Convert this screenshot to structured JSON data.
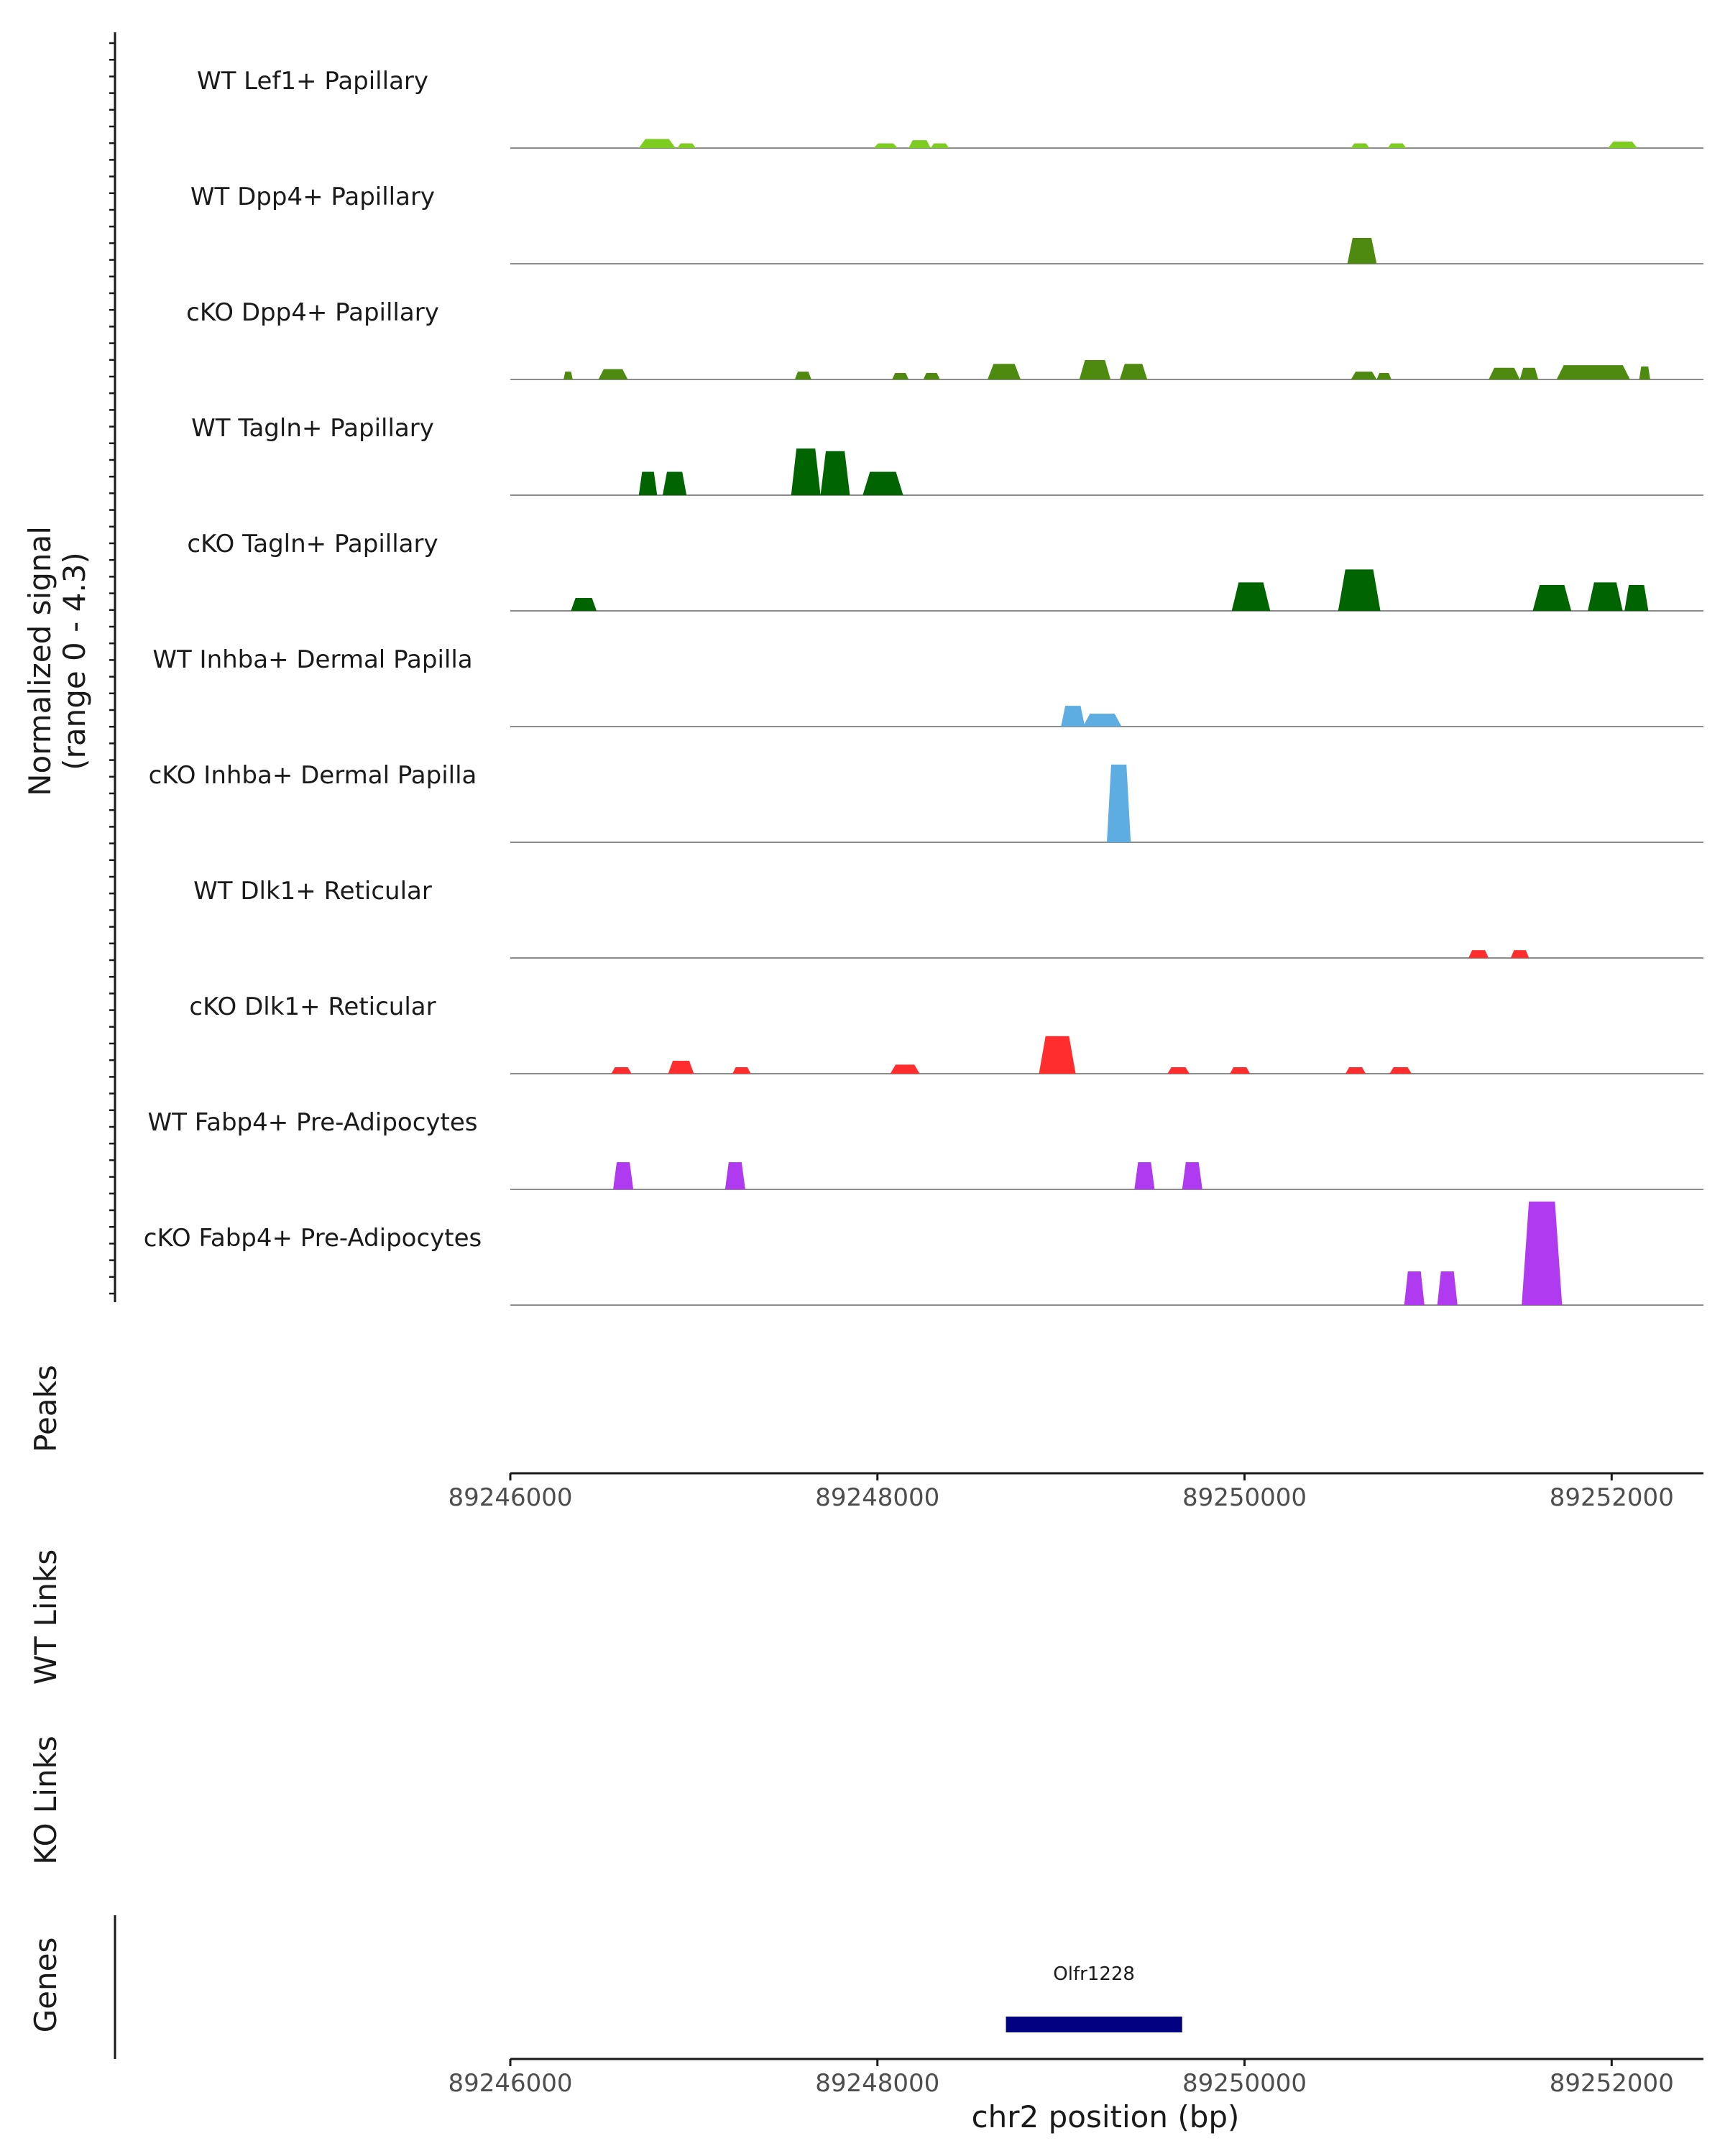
{
  "chart_data": {
    "type": "area",
    "title": "",
    "chromosome": "chr2",
    "xlim": [
      89246000,
      89252500
    ],
    "ylim": [
      0,
      4.3
    ],
    "ylabel": "Normalized signal",
    "ylabel_sub": "(range 0 - 4.3)",
    "xlabel": "chr2 position (bp)",
    "x_ticks": [
      "89246000",
      "89248000",
      "89250000",
      "89252000"
    ],
    "x_tick_values": [
      89246000,
      89248000,
      89250000,
      89252000
    ],
    "panel_labels": {
      "peaks": "Peaks",
      "wt_links": "WT Links",
      "ko_links": "KO Links",
      "genes": "Genes"
    },
    "series": [
      {
        "name": "WT Lef1+ Papillary",
        "color": "#7CCD1F",
        "peaks": [
          [
            89246700,
            89246900,
            0.35
          ],
          [
            89246910,
            89247010,
            0.18
          ],
          [
            89247980,
            89248110,
            0.18
          ],
          [
            89248170,
            89248290,
            0.3
          ],
          [
            89248290,
            89248390,
            0.18
          ],
          [
            89250580,
            89250680,
            0.18
          ],
          [
            89250780,
            89250880,
            0.18
          ],
          [
            89251980,
            89252140,
            0.25
          ]
        ]
      },
      {
        "name": "WT Dpp4+ Papillary",
        "color": "#4E8A10",
        "peaks": [
          [
            89250560,
            89250720,
            1.0
          ]
        ]
      },
      {
        "name": "cKO Dpp4+ Papillary",
        "color": "#4E8A10",
        "peaks": [
          [
            89246290,
            89246340,
            0.3
          ],
          [
            89246480,
            89246640,
            0.4
          ],
          [
            89247550,
            89247640,
            0.3
          ],
          [
            89248080,
            89248170,
            0.25
          ],
          [
            89248250,
            89248340,
            0.25
          ],
          [
            89248600,
            89248780,
            0.6
          ],
          [
            89249100,
            89249270,
            0.75
          ],
          [
            89249320,
            89249470,
            0.6
          ],
          [
            89250580,
            89250720,
            0.3
          ],
          [
            89250720,
            89250800,
            0.25
          ],
          [
            89251330,
            89251500,
            0.45
          ],
          [
            89251500,
            89251600,
            0.45
          ],
          [
            89251700,
            89252100,
            0.55
          ],
          [
            89252150,
            89252210,
            0.5
          ]
        ]
      },
      {
        "name": "WT Tagln+ Papillary",
        "color": "#006400",
        "peaks": [
          [
            89246700,
            89246800,
            0.9
          ],
          [
            89246830,
            89246960,
            0.9
          ],
          [
            89247530,
            89247690,
            1.8
          ],
          [
            89247690,
            89247850,
            1.7
          ],
          [
            89247920,
            89248140,
            0.9
          ]
        ]
      },
      {
        "name": "cKO Tagln+ Papillary",
        "color": "#006400",
        "peaks": [
          [
            89246330,
            89246470,
            0.5
          ],
          [
            89249930,
            89250140,
            1.1
          ],
          [
            89250510,
            89250740,
            1.6
          ],
          [
            89251570,
            89251780,
            1.0
          ],
          [
            89251870,
            89252060,
            1.1
          ],
          [
            89252070,
            89252200,
            1.0
          ]
        ]
      },
      {
        "name": "WT Inhba+ Dermal Papilla",
        "color": "#5DADE2",
        "peaks": [
          [
            89249000,
            89249130,
            0.8
          ],
          [
            89249120,
            89249330,
            0.5
          ]
        ]
      },
      {
        "name": "cKO Inhba+ Dermal Papilla",
        "color": "#5DADE2",
        "peaks": [
          [
            89249250,
            89249380,
            3.0
          ]
        ]
      },
      {
        "name": "WT Dlk1+ Reticular",
        "color": "#FF2D2D",
        "peaks": [
          [
            89251220,
            89251330,
            0.3
          ],
          [
            89251450,
            89251550,
            0.3
          ]
        ]
      },
      {
        "name": "cKO Dlk1+ Reticular",
        "color": "#FF2D2D",
        "peaks": [
          [
            89246550,
            89246660,
            0.25
          ],
          [
            89246860,
            89247000,
            0.5
          ],
          [
            89247210,
            89247310,
            0.25
          ],
          [
            89248070,
            89248230,
            0.35
          ],
          [
            89248880,
            89249080,
            1.45
          ],
          [
            89249580,
            89249700,
            0.25
          ],
          [
            89249920,
            89250030,
            0.25
          ],
          [
            89250550,
            89250660,
            0.25
          ],
          [
            89250790,
            89250910,
            0.25
          ]
        ]
      },
      {
        "name": "WT Fabp4+ Pre-Adipocytes",
        "color": "#B03AF0",
        "peaks": [
          [
            89246560,
            89246670,
            1.05
          ],
          [
            89247170,
            89247280,
            1.05
          ],
          [
            89249400,
            89249510,
            1.05
          ],
          [
            89249660,
            89249770,
            1.05
          ]
        ]
      },
      {
        "name": "cKO Fabp4+ Pre-Adipocytes",
        "color": "#B03AF0",
        "peaks": [
          [
            89250870,
            89250980,
            1.3
          ],
          [
            89251050,
            89251160,
            1.3
          ],
          [
            89251510,
            89251730,
            4.0
          ]
        ]
      }
    ],
    "genes": [
      {
        "name": "Olfr1228",
        "start": 89248700,
        "end": 89249660,
        "color": "#000080"
      }
    ]
  }
}
